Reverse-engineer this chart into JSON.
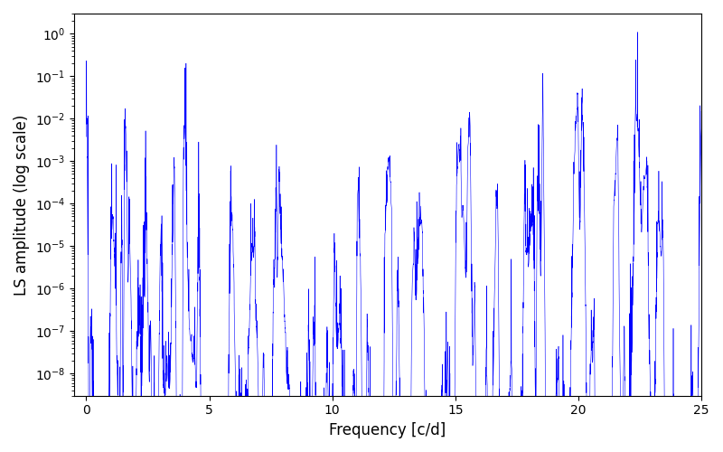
{
  "title": "",
  "xlabel": "Frequency [c/d]",
  "ylabel": "LS amplitude (log scale)",
  "line_color": "blue",
  "xlim": [
    -0.5,
    25
  ],
  "ylim": [
    3e-09,
    3
  ],
  "figsize": [
    8.0,
    5.0
  ],
  "dpi": 100,
  "freq_min": 0.0,
  "freq_max": 25.0,
  "n_points": 8000,
  "seed": 12345,
  "background_color": "white",
  "xticks": [
    0,
    5,
    10,
    15,
    20,
    25
  ],
  "noise_floor_log": -4.5,
  "noise_spread": 1.8
}
